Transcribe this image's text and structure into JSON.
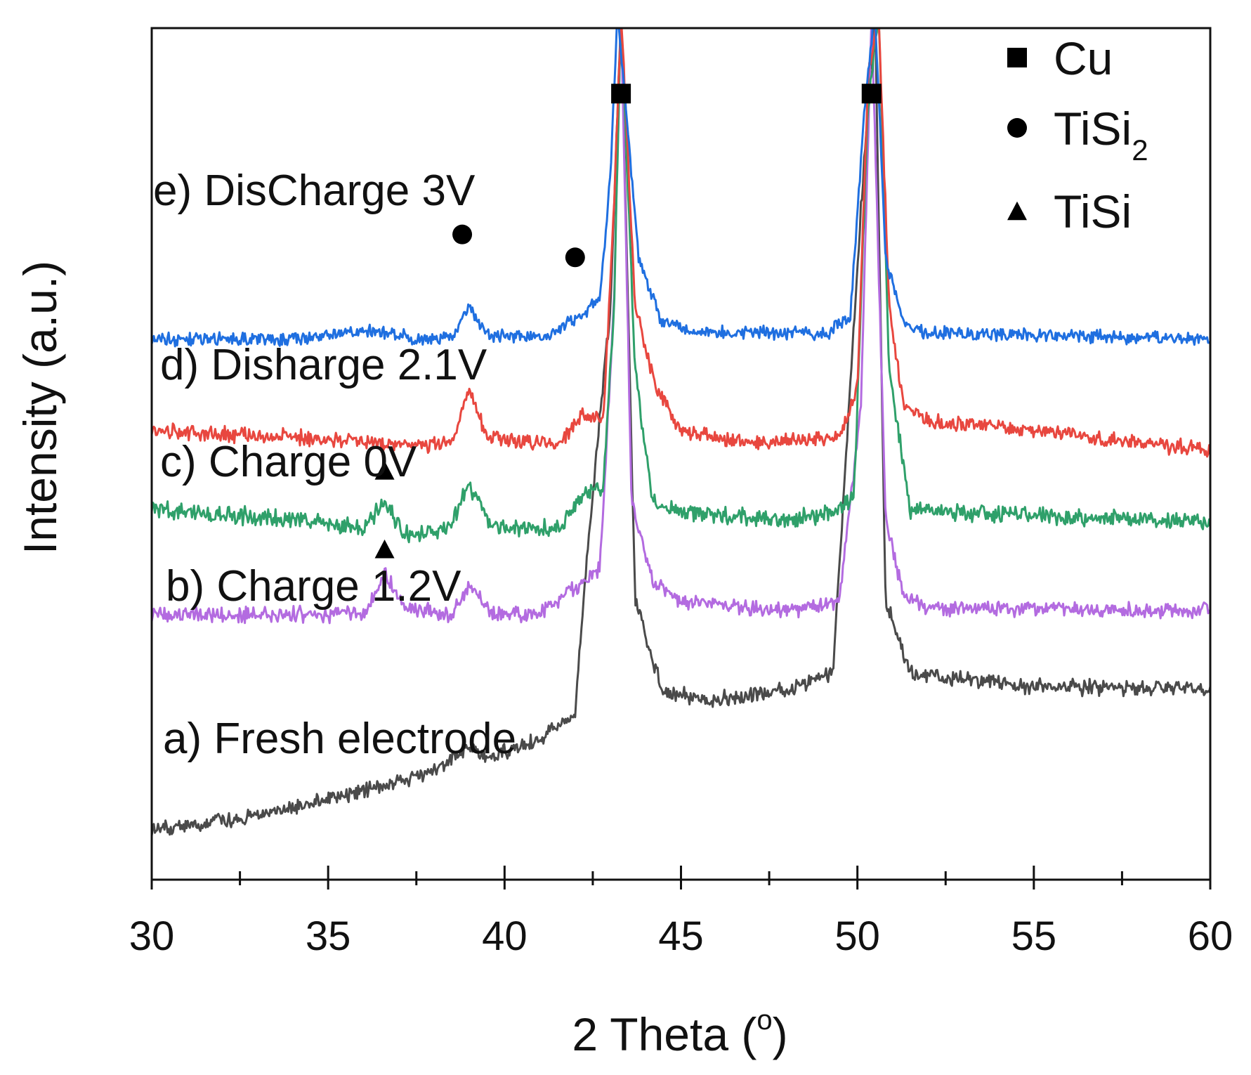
{
  "chart_data": {
    "type": "line",
    "title": "",
    "xlabel": "2 Theta (°)",
    "xlabel_main": "2 Theta (",
    "xlabel_degree": "o",
    "xlabel_close": ")",
    "ylabel": "Intensity (a.u.)",
    "xlim": [
      30,
      60
    ],
    "x_ticks": [
      30,
      35,
      40,
      45,
      50,
      55,
      60
    ],
    "y_ticks_shown": false,
    "series": [
      {
        "name": "a) Fresh electrode",
        "color": "#4a4a4a",
        "baseline": 0.0,
        "noise": 0.035,
        "points": [
          [
            30,
            0.0
          ],
          [
            32,
            0.03
          ],
          [
            34,
            0.07
          ],
          [
            36,
            0.12
          ],
          [
            38,
            0.18
          ],
          [
            39,
            0.26
          ],
          [
            39.5,
            0.22
          ],
          [
            41,
            0.28
          ],
          [
            42,
            0.36
          ],
          [
            42.3,
            0.8
          ],
          [
            43,
            1.6
          ],
          [
            43.3,
            2.5
          ],
          [
            43.7,
            0.7
          ],
          [
            44.5,
            0.42
          ],
          [
            46,
            0.4
          ],
          [
            48,
            0.43
          ],
          [
            49.3,
            0.48
          ],
          [
            49.6,
            1.0
          ],
          [
            50.1,
            1.9
          ],
          [
            50.5,
            2.5
          ],
          [
            50.8,
            0.7
          ],
          [
            51.5,
            0.48
          ],
          [
            55,
            0.44
          ],
          [
            60,
            0.43
          ]
        ],
        "peaks": []
      },
      {
        "name": "b) Charge 1.2V",
        "color": "#b36be0",
        "baseline": 0.66,
        "noise": 0.035,
        "points": [
          [
            30,
            0.66
          ],
          [
            36,
            0.66
          ],
          [
            36.6,
            0.78
          ],
          [
            37.2,
            0.68
          ],
          [
            38.5,
            0.66
          ],
          [
            39.0,
            0.75
          ],
          [
            39.6,
            0.66
          ],
          [
            41,
            0.66
          ],
          [
            42,
            0.74
          ],
          [
            42.7,
            0.8
          ],
          [
            43.1,
            1.6
          ],
          [
            43.3,
            2.5
          ],
          [
            43.6,
            1.0
          ],
          [
            44.2,
            0.76
          ],
          [
            45,
            0.7
          ],
          [
            48,
            0.67
          ],
          [
            49.5,
            0.7
          ],
          [
            50.1,
            1.3
          ],
          [
            50.4,
            2.5
          ],
          [
            50.8,
            0.95
          ],
          [
            51.3,
            0.72
          ],
          [
            52,
            0.68
          ],
          [
            60,
            0.67
          ]
        ],
        "peaks": [
          36.6,
          39.0
        ]
      },
      {
        "name": "c) Charge 0V",
        "color": "#2fa06a",
        "baseline": 0.92,
        "noise": 0.04,
        "points": [
          [
            30,
            0.98
          ],
          [
            34,
            0.95
          ],
          [
            36.0,
            0.92
          ],
          [
            36.6,
            1.0
          ],
          [
            37.2,
            0.9
          ],
          [
            38.4,
            0.92
          ],
          [
            39.0,
            1.06
          ],
          [
            39.6,
            0.93
          ],
          [
            41.5,
            0.92
          ],
          [
            42.3,
            1.03
          ],
          [
            42.8,
            1.05
          ],
          [
            43.1,
            1.6
          ],
          [
            43.3,
            2.5
          ],
          [
            43.7,
            1.4
          ],
          [
            44.2,
            1.0
          ],
          [
            45,
            0.97
          ],
          [
            48,
            0.95
          ],
          [
            49.4,
            0.97
          ],
          [
            49.9,
            1.02
          ],
          [
            50.3,
            2.2
          ],
          [
            50.6,
            2.5
          ],
          [
            50.9,
            1.4
          ],
          [
            51.5,
            0.98
          ],
          [
            55,
            0.96
          ],
          [
            60,
            0.94
          ]
        ],
        "peaks": [
          36.6
        ]
      },
      {
        "name": "d) Disharge 2.1V",
        "color": "#e8473f",
        "baseline": 1.18,
        "noise": 0.035,
        "points": [
          [
            30,
            1.22
          ],
          [
            34,
            1.2
          ],
          [
            37,
            1.18
          ],
          [
            38.5,
            1.18
          ],
          [
            39.0,
            1.35
          ],
          [
            39.5,
            1.2
          ],
          [
            41.5,
            1.18
          ],
          [
            42.2,
            1.27
          ],
          [
            42.8,
            1.25
          ],
          [
            43.1,
            1.9
          ],
          [
            43.3,
            2.5
          ],
          [
            43.7,
            1.6
          ],
          [
            44.3,
            1.35
          ],
          [
            45,
            1.22
          ],
          [
            47,
            1.18
          ],
          [
            49.5,
            1.2
          ],
          [
            50.0,
            1.35
          ],
          [
            50.3,
            2.3
          ],
          [
            50.6,
            2.5
          ],
          [
            50.9,
            1.6
          ],
          [
            51.3,
            1.3
          ],
          [
            52,
            1.25
          ],
          [
            55,
            1.22
          ],
          [
            60,
            1.16
          ]
        ],
        "peaks": []
      },
      {
        "name": "e) DisCharge 3V",
        "color": "#1f6fe0",
        "baseline": 1.5,
        "noise": 0.03,
        "points": [
          [
            30,
            1.5
          ],
          [
            34,
            1.5
          ],
          [
            36.2,
            1.53
          ],
          [
            37.5,
            1.5
          ],
          [
            38.5,
            1.5
          ],
          [
            39.0,
            1.6
          ],
          [
            39.5,
            1.51
          ],
          [
            41.3,
            1.51
          ],
          [
            42.1,
            1.57
          ],
          [
            42.7,
            1.62
          ],
          [
            43.0,
            2.0
          ],
          [
            43.2,
            2.5
          ],
          [
            43.8,
            1.75
          ],
          [
            44.4,
            1.56
          ],
          [
            45.5,
            1.52
          ],
          [
            49.2,
            1.52
          ],
          [
            49.8,
            1.57
          ],
          [
            50.2,
            2.2
          ],
          [
            50.5,
            2.5
          ],
          [
            50.8,
            1.75
          ],
          [
            51.3,
            1.55
          ],
          [
            52,
            1.52
          ],
          [
            60,
            1.5
          ]
        ],
        "peaks": [
          39.0,
          42.0
        ]
      }
    ],
    "legend": [
      {
        "marker": "square",
        "label": "Cu",
        "sub": ""
      },
      {
        "marker": "circle",
        "label": "TiSi",
        "sub": "2"
      },
      {
        "marker": "triangle",
        "label": "TiSi",
        "sub": ""
      }
    ],
    "annotations": [
      {
        "marker": "square",
        "x": 43.3,
        "y": 2.25
      },
      {
        "marker": "square",
        "x": 50.4,
        "y": 2.25
      },
      {
        "marker": "circle",
        "x": 38.8,
        "y": 1.82
      },
      {
        "marker": "circle",
        "x": 42.0,
        "y": 1.75
      },
      {
        "marker": "triangle",
        "x": 36.6,
        "y": 1.1
      },
      {
        "marker": "triangle",
        "x": 36.6,
        "y": 0.86
      }
    ]
  }
}
